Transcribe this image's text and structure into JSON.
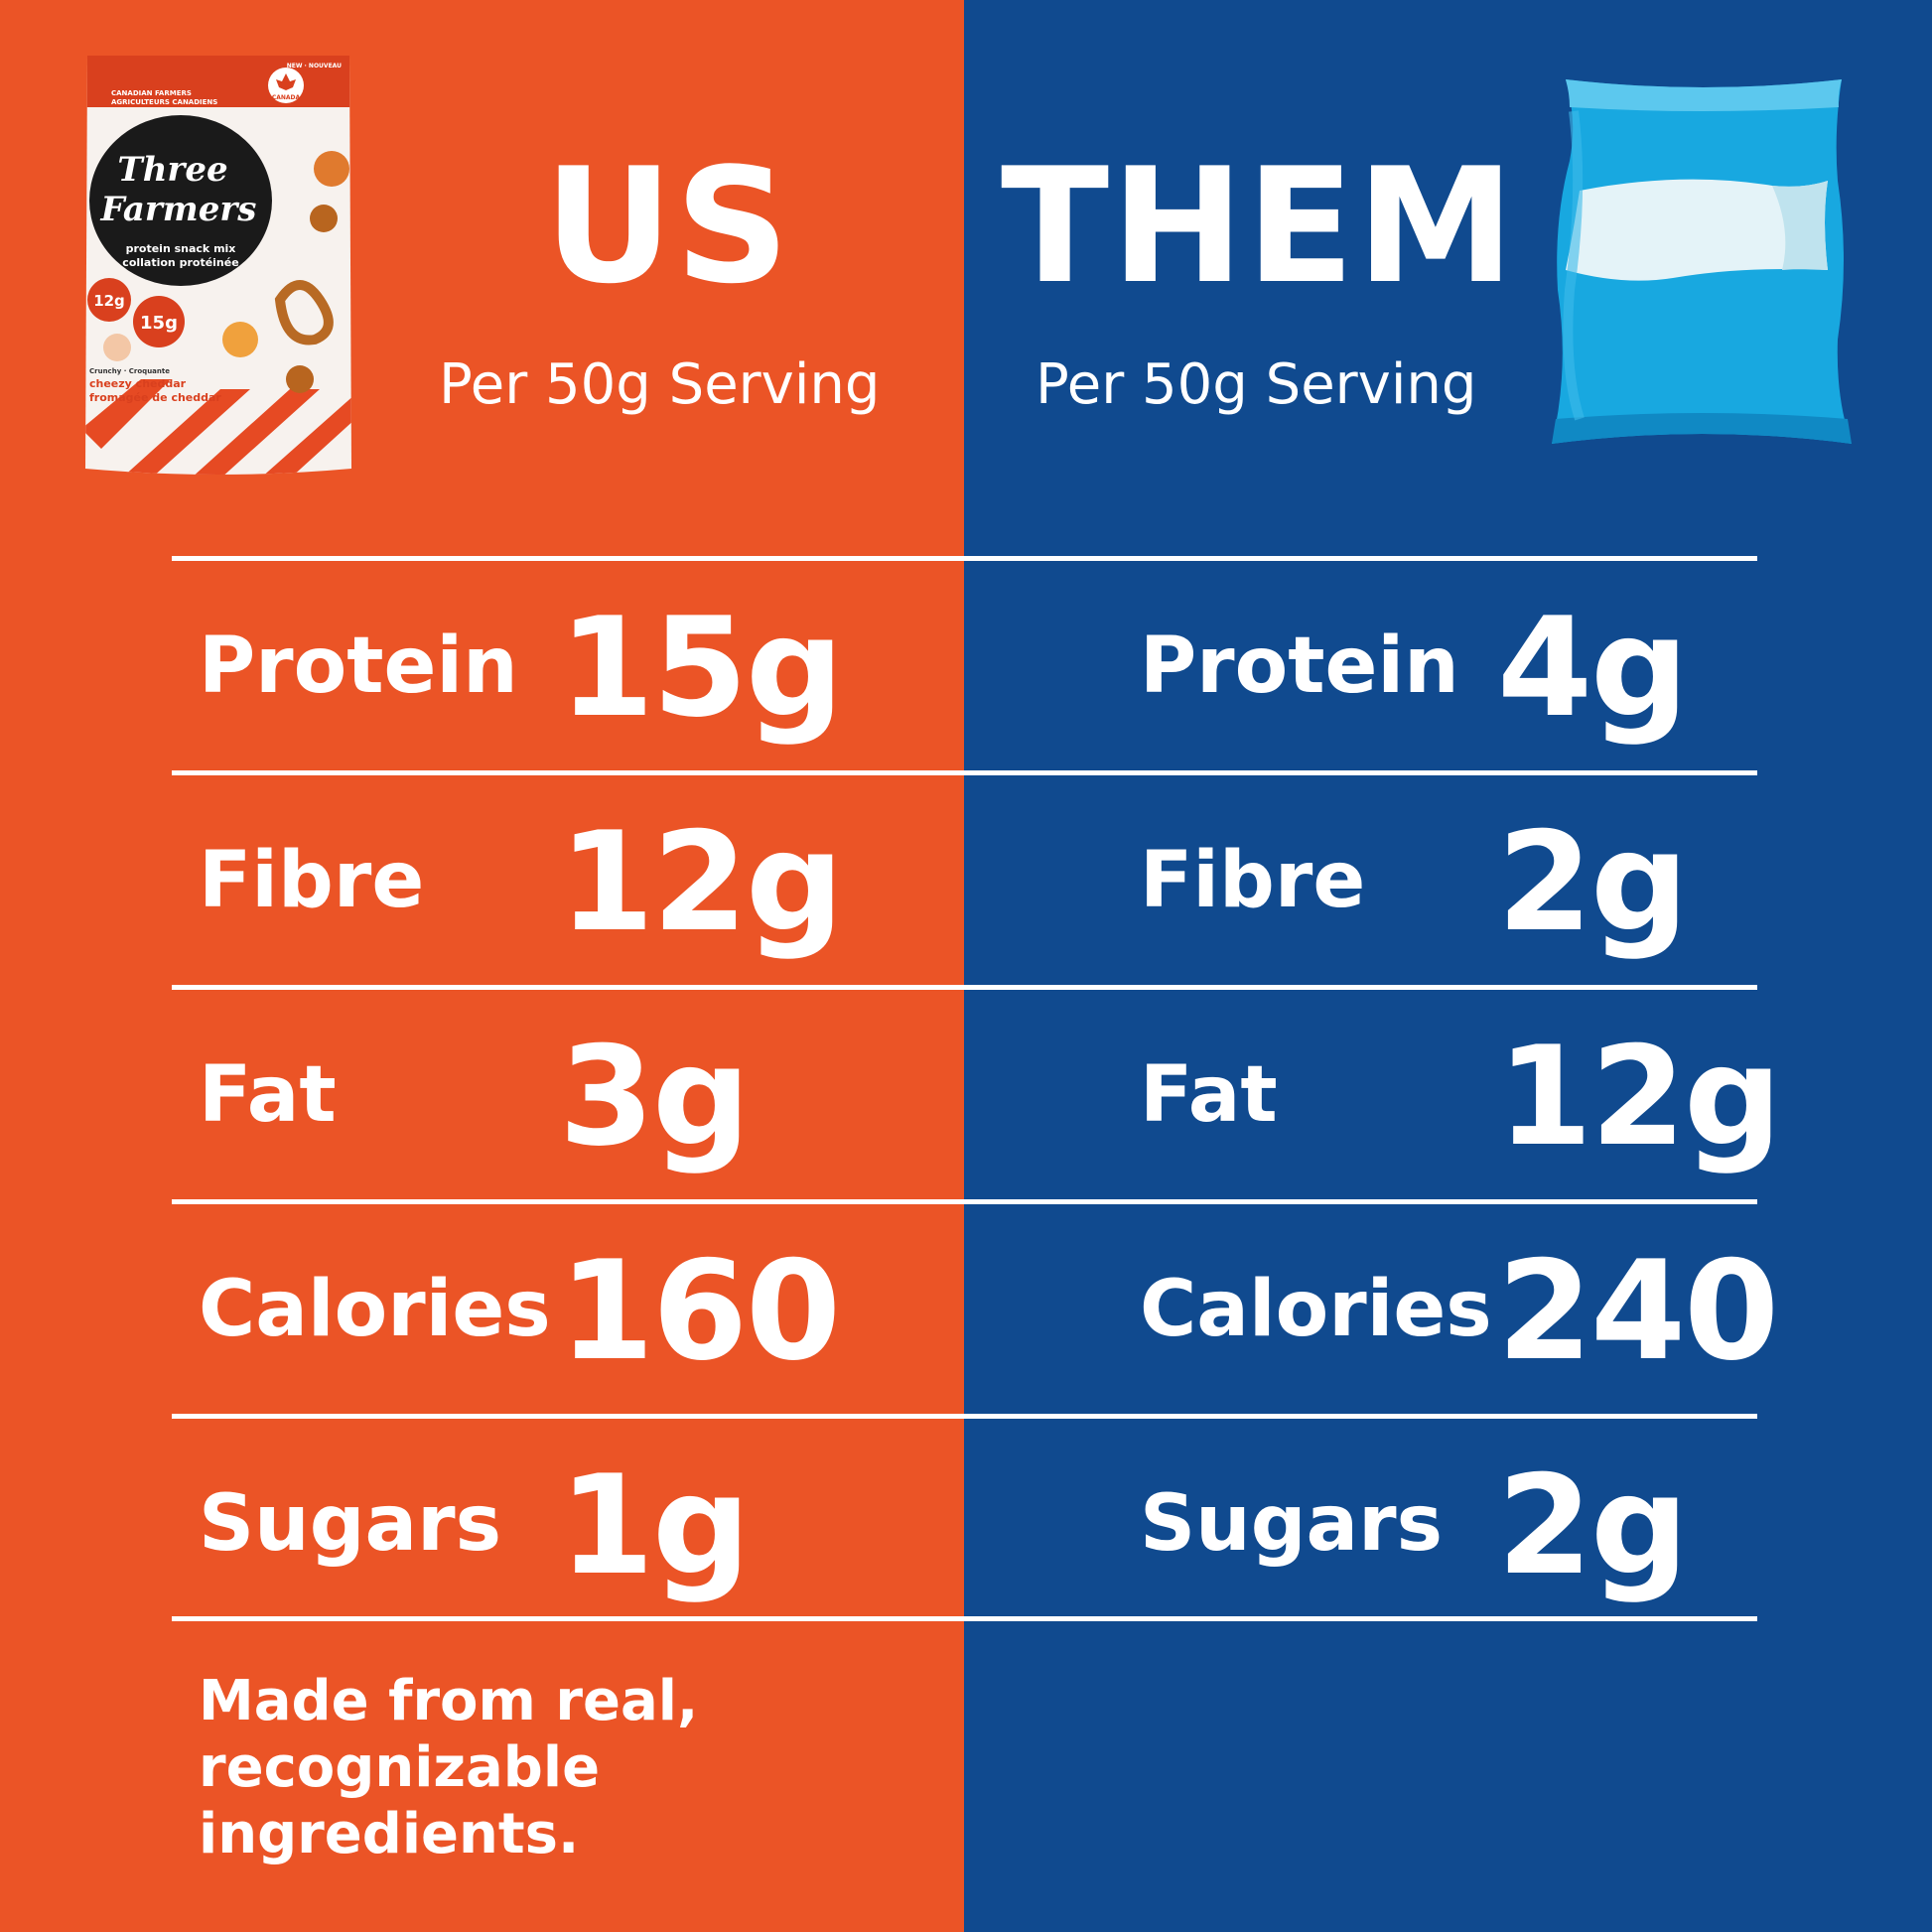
{
  "header": {
    "us_title": "US",
    "them_title": "THEM",
    "serving_us": "Per 50g Serving",
    "serving_them": "Per 50g Serving"
  },
  "us": {
    "rows": [
      {
        "label": "Protein",
        "value": "15g"
      },
      {
        "label": "Fibre",
        "value": "12g"
      },
      {
        "label": "Fat",
        "value": "3g"
      },
      {
        "label": "Calories",
        "value": "160"
      },
      {
        "label": "Sugars",
        "value": "1g"
      }
    ]
  },
  "them": {
    "rows": [
      {
        "label": "Protein",
        "value": "4g"
      },
      {
        "label": "Fibre",
        "value": "2g"
      },
      {
        "label": "Fat",
        "value": "12g"
      },
      {
        "label": "Calories",
        "value": "240"
      },
      {
        "label": "Sugars",
        "value": "2g"
      }
    ]
  },
  "footer": {
    "line1": "Made from real,",
    "line2": "recognizable ingredients."
  },
  "package": {
    "brand_line1": "Three",
    "brand_line2": "Farmers",
    "product": "protein snack mix",
    "product_fr": "collation protéinée",
    "flavour": "cheezy cheddar",
    "flavour_fr": "fromagée de cheddar",
    "fibre_badge": "12g",
    "protein_badge": "15g",
    "top_tag": "NEW · NOUVEAU",
    "farmers_line": "CANADIAN FARMERS",
    "farmers_line_fr": "AGRICULTEURS CANADIENS",
    "canada_badge": "CANADA",
    "crunchy": "Crunchy · Croquante"
  },
  "colors": {
    "us_bg": "#EB5426",
    "them_bg": "#104A8F",
    "text": "#FFFFFF",
    "bag_blue": "#18A8E0",
    "bag_light": "#E4F3F8"
  },
  "icons": {
    "product_image": "three-farmers-package",
    "competitor_image": "generic-chip-bag"
  }
}
